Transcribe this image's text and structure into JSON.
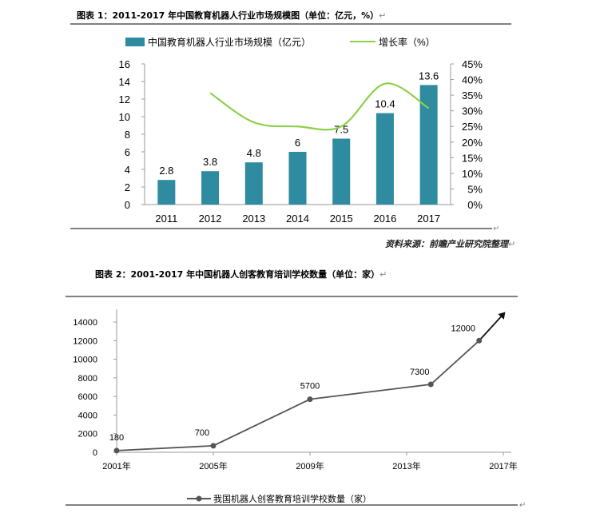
{
  "caption1": "图表 1：2011-2017 年中国教育机器人行业市场规模图（单位：亿元，%）",
  "caption2": "图表 2：2001-2017 年中国机器人创客教育培训学校数量（单位：家）",
  "source": "资料来源：前瞻产业研究院整理",
  "return_mark": "↵",
  "chart_data": [
    {
      "type": "bar",
      "title": "",
      "categories": [
        "2011",
        "2012",
        "2013",
        "2014",
        "2015",
        "2016",
        "2017"
      ],
      "series": [
        {
          "name": "中国教育机器人行业市场规模（亿元）",
          "type": "bar",
          "axis": "left",
          "values": [
            2.8,
            3.8,
            4.8,
            6,
            7.5,
            10.4,
            13.6
          ],
          "labels": [
            "2.8",
            "3.8",
            "4.8",
            "6",
            "7.5",
            "10.4",
            "13.6"
          ],
          "color": "#2e8ba0"
        },
        {
          "name": "增长率（%）",
          "type": "line",
          "axis": "right",
          "values": [
            null,
            35.7,
            26.3,
            25.0,
            25.0,
            38.7,
            30.8
          ],
          "color": "#8cd04a"
        }
      ],
      "y_left": {
        "min": 0,
        "max": 16,
        "ticks": [
          "0",
          "2",
          "4",
          "6",
          "8",
          "10",
          "12",
          "14",
          "16"
        ]
      },
      "y_right": {
        "min": 0,
        "max": 45,
        "ticks": [
          "0%",
          "5%",
          "10%",
          "15%",
          "20%",
          "25%",
          "30%",
          "35%",
          "40%",
          "45%"
        ]
      },
      "legend_position": "top",
      "grid": false
    },
    {
      "type": "line",
      "title": "",
      "series": [
        {
          "name": "我国机器人创客教育培训学校数量（家）",
          "x": [
            2001,
            2005,
            2009,
            2014,
            2016
          ],
          "values": [
            180,
            700,
            5700,
            7300,
            12000
          ],
          "labels": [
            "180",
            "700",
            "5700",
            "7300",
            "12000"
          ],
          "color": "#555555"
        }
      ],
      "x_ticks": [
        "2001年",
        "2005年",
        "2009年",
        "2013年",
        "2017年"
      ],
      "x_range": [
        2001,
        2017
      ],
      "y_range": [
        0,
        14000
      ],
      "y_ticks": [
        "0",
        "2000",
        "4000",
        "6000",
        "8000",
        "10000",
        "12000",
        "14000"
      ],
      "legend_position": "bottom",
      "grid": false
    }
  ]
}
